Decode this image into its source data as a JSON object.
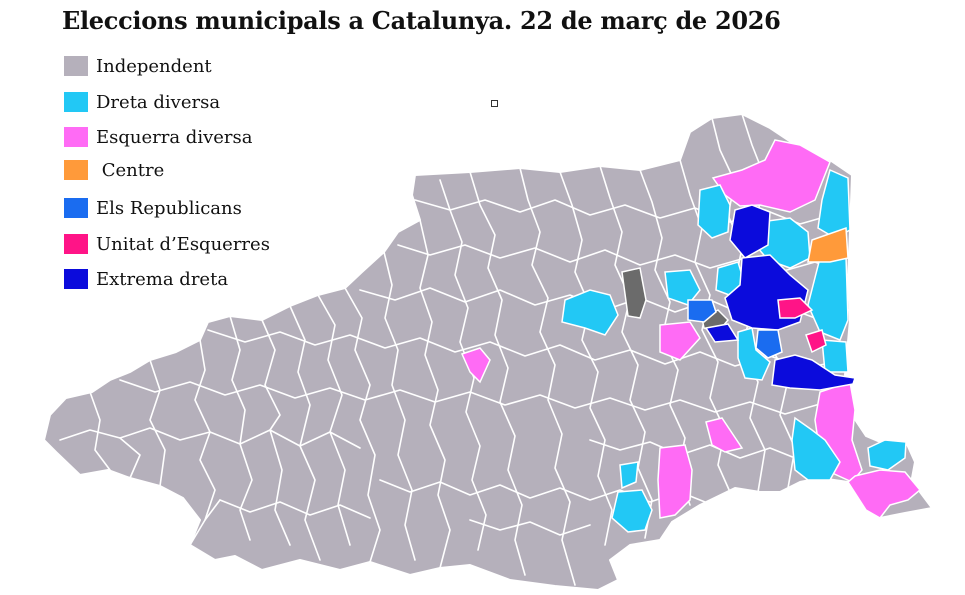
{
  "title": "Eleccions municipals a Catalunya. 22 de març de 2026",
  "legend": [
    {
      "label": "Independent",
      "color": "#b5b0bb"
    },
    {
      "label": "Dreta diversa",
      "color": "#22c8f5"
    },
    {
      "label": "Esquerra diversa",
      "color": "#ff6bf5"
    },
    {
      "label": " Centre",
      "color": "#ff9a3a"
    },
    {
      "label": "Els Republicans",
      "color": "#1a6cf0"
    },
    {
      "label": "Unitat d’Esquerres",
      "color": "#ff1487"
    },
    {
      "label": "Extrema dreta",
      "color": "#0b0bdc"
    }
  ],
  "colors": {
    "base": "#b5b0bb",
    "border": "#ffffff",
    "dark_grey": "#6b6b6b"
  }
}
